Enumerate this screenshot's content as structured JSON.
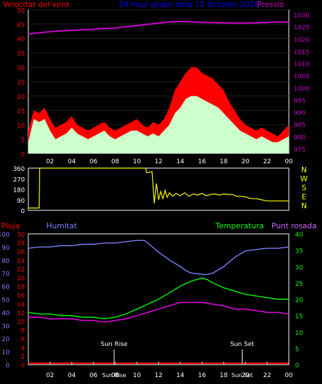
{
  "chart_data": [
    {
      "type": "area",
      "title": "24 hour graph data   12 Octubre 2018",
      "left_label": "Velocitat del vent",
      "right_label": "Pressió",
      "left_ticks": [
        "0",
        "5",
        "10",
        "15",
        "20",
        "25",
        "30",
        "35",
        "40",
        "45",
        "50"
      ],
      "right_ticks": [
        "975",
        "980",
        "985",
        "990",
        "995",
        "1000",
        "1005",
        "1010",
        "1015",
        "1020",
        "1025",
        "1030"
      ],
      "x_ticks": [
        "02",
        "04",
        "06",
        "08",
        "10",
        "12",
        "14",
        "16",
        "18",
        "20",
        "22",
        "00"
      ],
      "xlim": [
        0,
        24
      ],
      "ylim_left": [
        0,
        50
      ],
      "ylim_right": [
        973,
        1032
      ],
      "series": [
        {
          "color": "#ff0000",
          "x": [
            0,
            0.5,
            1,
            1.5,
            2,
            2.5,
            3,
            3.5,
            4,
            4.5,
            5,
            5.5,
            6,
            6.5,
            7,
            7.5,
            8,
            8.5,
            9,
            9.5,
            10,
            10.5,
            11,
            11.5,
            12,
            12.5,
            13,
            13.5,
            14,
            14.5,
            15,
            15.5,
            16,
            16.5,
            17,
            17.5,
            18,
            18.5,
            19,
            19.5,
            20,
            20.5,
            21,
            21.5,
            22,
            22.5,
            23,
            23.5,
            24
          ],
          "values": [
            8,
            15,
            14,
            16,
            12,
            9,
            10,
            11,
            13,
            10,
            9,
            8,
            9,
            10,
            11,
            9,
            8,
            9,
            10,
            11,
            12,
            10,
            9,
            11,
            10,
            12,
            16,
            22,
            25,
            28,
            30,
            30,
            28,
            27,
            26,
            24,
            22,
            18,
            15,
            12,
            10,
            9,
            8,
            9,
            8,
            7,
            6,
            8,
            10
          ]
        },
        {
          "color": "#ccffcc",
          "x": [
            0,
            0.5,
            1,
            1.5,
            2,
            2.5,
            3,
            3.5,
            4,
            4.5,
            5,
            5.5,
            6,
            6.5,
            7,
            7.5,
            8,
            8.5,
            9,
            9.5,
            10,
            10.5,
            11,
            11.5,
            12,
            12.5,
            13,
            13.5,
            14,
            14.5,
            15,
            15.5,
            16,
            16.5,
            17,
            17.5,
            18,
            18.5,
            19,
            19.5,
            20,
            20.5,
            21,
            21.5,
            22,
            22.5,
            23,
            23.5,
            24
          ],
          "values": [
            4,
            12,
            11,
            12,
            8,
            5,
            6,
            7,
            9,
            7,
            6,
            5,
            6,
            7,
            8,
            6,
            5,
            6,
            7,
            8,
            8,
            7,
            6,
            7,
            6,
            8,
            10,
            14,
            16,
            19,
            20,
            20,
            19,
            18,
            17,
            16,
            14,
            12,
            10,
            8,
            7,
            6,
            5,
            6,
            5,
            4,
            4,
            5,
            6
          ]
        },
        {
          "color": "#cc00cc",
          "x": [
            0,
            1,
            2,
            3,
            4,
            5,
            6,
            7,
            8,
            9,
            10,
            11,
            12,
            13,
            14,
            15,
            16,
            17,
            18,
            19,
            20,
            21,
            22,
            23,
            24
          ],
          "values": [
            1022,
            1022.5,
            1023,
            1023.3,
            1023.5,
            1023.8,
            1024,
            1024.3,
            1024.5,
            1025,
            1025.5,
            1026,
            1026.5,
            1027,
            1027.2,
            1027,
            1026.8,
            1026.7,
            1026.6,
            1026.5,
            1026.5,
            1026.6,
            1026.8,
            1027,
            1026.9
          ]
        }
      ]
    },
    {
      "type": "line",
      "right_label": "NWSEN",
      "left_ticks": [
        "0",
        "90",
        "180",
        "270",
        "360"
      ],
      "ylim": [
        0,
        360
      ],
      "series": [
        {
          "color": "#ffff00",
          "x": [
            0,
            0.6,
            1,
            1.05,
            10.8,
            10.9,
            11.4,
            11.6,
            11.8,
            12,
            12.2,
            12.4,
            12.6,
            12.8,
            13,
            13.3,
            13.6,
            14,
            14.4,
            14.8,
            15.2,
            15.6,
            16,
            16.4,
            16.8,
            17.2,
            17.6,
            18,
            18.4,
            18.8,
            19.2,
            19.6,
            20,
            20.5,
            21,
            21.5,
            22,
            22.5,
            23,
            23.5,
            24
          ],
          "values": [
            20,
            20,
            20,
            360,
            360,
            320,
            330,
            60,
            230,
            90,
            160,
            100,
            170,
            110,
            150,
            120,
            145,
            125,
            150,
            120,
            140,
            130,
            145,
            125,
            135,
            140,
            130,
            140,
            135,
            135,
            120,
            120,
            115,
            100,
            100,
            90,
            80,
            80,
            80,
            80,
            80
          ]
        }
      ]
    },
    {
      "type": "line",
      "labels": [
        "Pluja",
        "Humitat",
        "Temperatura",
        "Punt rosada"
      ],
      "rain_ticks": [
        "0",
        "10",
        "20",
        "30",
        "40",
        "50",
        "60",
        "70",
        "80",
        "90",
        "100"
      ],
      "humidity_ticks": [
        "0",
        "2",
        "4",
        "6",
        "8",
        "10",
        "12",
        "14",
        "16",
        "18",
        "20",
        "22",
        "24",
        "26",
        "28",
        "30"
      ],
      "temp_ticks": [
        "0",
        "5",
        "10",
        "15",
        "20",
        "25",
        "30",
        "35",
        "40"
      ],
      "annotations": [
        "Sun Rise",
        "Sun Set"
      ],
      "axis_marks": [
        "Sun Rise",
        "Sun Set"
      ],
      "series": [
        {
          "color": "#ff0000",
          "x": [
            0,
            24
          ],
          "values": [
            0.3,
            0.3
          ]
        },
        {
          "color": "#8080ff",
          "x": [
            0,
            1,
            2,
            3,
            4,
            5,
            6,
            7,
            8,
            9,
            10,
            10.7,
            11,
            12,
            13,
            14,
            14.5,
            15,
            16,
            16.5,
            17,
            18,
            19,
            20,
            21,
            22,
            23,
            24
          ],
          "values": [
            89,
            90,
            90,
            91,
            91,
            92,
            92,
            93,
            93,
            94,
            95,
            95,
            93,
            86,
            80,
            75,
            72,
            70,
            69,
            69,
            70,
            75,
            82,
            87,
            88,
            89,
            89,
            90
          ]
        },
        {
          "color": "#00ff00",
          "x": [
            0,
            1,
            2,
            3,
            4,
            5,
            6,
            7,
            8,
            9,
            10,
            11,
            12,
            13,
            14,
            15,
            16,
            16.5,
            17,
            18,
            19,
            20,
            21,
            22,
            23,
            24
          ],
          "values": [
            16,
            15.5,
            15.5,
            15,
            15,
            14.5,
            14.5,
            14,
            14.5,
            15.5,
            17,
            18.5,
            20,
            22,
            24,
            25.5,
            26.5,
            26,
            25,
            23.5,
            22.5,
            21.5,
            21,
            20.5,
            20,
            20
          ]
        },
        {
          "color": "#ff00ff",
          "x": [
            0,
            1,
            2,
            3,
            4,
            5,
            6,
            7,
            8,
            9,
            10,
            11,
            12,
            13,
            14,
            15,
            16,
            17,
            18,
            19,
            20,
            21,
            22,
            23,
            24
          ],
          "values": [
            14.5,
            14.5,
            14,
            14,
            14,
            13.5,
            13.5,
            13,
            13.5,
            14,
            15,
            16,
            17,
            18,
            19,
            19,
            19,
            18.5,
            18,
            17,
            17,
            16.5,
            16,
            16,
            15.5
          ]
        }
      ]
    }
  ]
}
